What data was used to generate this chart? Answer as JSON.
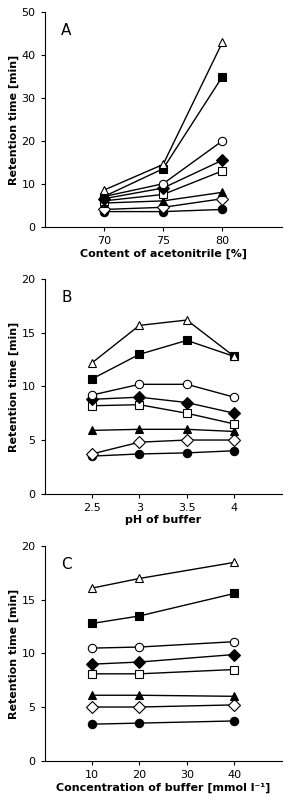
{
  "panel_A": {
    "label": "A",
    "xlabel": "Content of acetonitrile [%]",
    "ylabel": "Retention time [min]",
    "xlim": [
      65,
      85
    ],
    "ylim": [
      0,
      50
    ],
    "xticks": [
      70,
      75,
      80
    ],
    "yticks": [
      0,
      10,
      20,
      30,
      40,
      50
    ],
    "xticklabels": [
      "70",
      "75",
      "80"
    ],
    "x": [
      70,
      75,
      80
    ],
    "series": [
      {
        "marker": "o",
        "filled": true,
        "y": [
          3.5,
          3.5,
          4.0
        ]
      },
      {
        "marker": "D",
        "filled": false,
        "y": [
          4.0,
          4.5,
          6.5
        ]
      },
      {
        "marker": "^",
        "filled": true,
        "y": [
          5.5,
          6.0,
          8.0
        ]
      },
      {
        "marker": "s",
        "filled": false,
        "y": [
          6.0,
          7.5,
          13.0
        ]
      },
      {
        "marker": "D",
        "filled": true,
        "y": [
          6.5,
          9.0,
          15.5
        ]
      },
      {
        "marker": "o",
        "filled": false,
        "y": [
          7.0,
          10.0,
          20.0
        ]
      },
      {
        "marker": "s",
        "filled": true,
        "y": [
          7.0,
          13.5,
          35.0
        ]
      },
      {
        "marker": "^",
        "filled": false,
        "y": [
          8.5,
          14.5,
          43.0
        ]
      }
    ]
  },
  "panel_B": {
    "label": "B",
    "xlabel": "pH of buffer",
    "ylabel": "Retention time [min]",
    "xlim": [
      2,
      4.5
    ],
    "ylim": [
      0,
      20
    ],
    "xticks": [
      2.5,
      3.0,
      3.5,
      4.0
    ],
    "yticks": [
      0,
      5,
      10,
      15,
      20
    ],
    "xticklabels": [
      "2.5",
      "3",
      "3.5",
      "4"
    ],
    "x": [
      2.5,
      3.0,
      3.5,
      4.0
    ],
    "series": [
      {
        "marker": "o",
        "filled": true,
        "y": [
          3.5,
          3.7,
          3.8,
          4.0
        ]
      },
      {
        "marker": "D",
        "filled": false,
        "y": [
          3.7,
          4.8,
          5.0,
          5.0
        ]
      },
      {
        "marker": "^",
        "filled": true,
        "y": [
          5.9,
          6.0,
          6.0,
          5.8
        ]
      },
      {
        "marker": "s",
        "filled": false,
        "y": [
          8.2,
          8.3,
          7.5,
          6.5
        ]
      },
      {
        "marker": "D",
        "filled": true,
        "y": [
          8.8,
          9.0,
          8.5,
          7.5
        ]
      },
      {
        "marker": "o",
        "filled": false,
        "y": [
          9.2,
          10.2,
          10.2,
          9.0
        ]
      },
      {
        "marker": "s",
        "filled": true,
        "y": [
          10.7,
          13.0,
          14.3,
          12.8
        ]
      },
      {
        "marker": "^",
        "filled": false,
        "y": [
          12.2,
          15.7,
          16.2,
          12.8
        ]
      }
    ]
  },
  "panel_C": {
    "label": "C",
    "xlabel": "Concentration of buffer [mmol l⁻¹]",
    "ylabel": "Retention time [min]",
    "xlim": [
      0,
      50
    ],
    "ylim": [
      0,
      20
    ],
    "xticks": [
      10,
      20,
      30,
      40
    ],
    "yticks": [
      0,
      5,
      10,
      15,
      20
    ],
    "xticklabels": [
      "10",
      "20",
      "30",
      "40"
    ],
    "x": [
      10,
      20,
      40
    ],
    "series": [
      {
        "marker": "o",
        "filled": true,
        "y": [
          3.4,
          3.5,
          3.7
        ]
      },
      {
        "marker": "D",
        "filled": false,
        "y": [
          5.0,
          5.0,
          5.2
        ]
      },
      {
        "marker": "^",
        "filled": true,
        "y": [
          6.1,
          6.1,
          6.0
        ]
      },
      {
        "marker": "s",
        "filled": false,
        "y": [
          8.1,
          8.1,
          8.5
        ]
      },
      {
        "marker": "D",
        "filled": true,
        "y": [
          9.0,
          9.2,
          9.9
        ]
      },
      {
        "marker": "o",
        "filled": false,
        "y": [
          10.5,
          10.6,
          11.1
        ]
      },
      {
        "marker": "s",
        "filled": true,
        "y": [
          12.8,
          13.5,
          15.6
        ]
      },
      {
        "marker": "^",
        "filled": false,
        "y": [
          16.1,
          17.0,
          18.5
        ]
      }
    ]
  },
  "marker_size": 6,
  "linewidth": 1.0,
  "tick_fontsize": 8,
  "label_fontsize": 8,
  "panel_label_fontsize": 11
}
